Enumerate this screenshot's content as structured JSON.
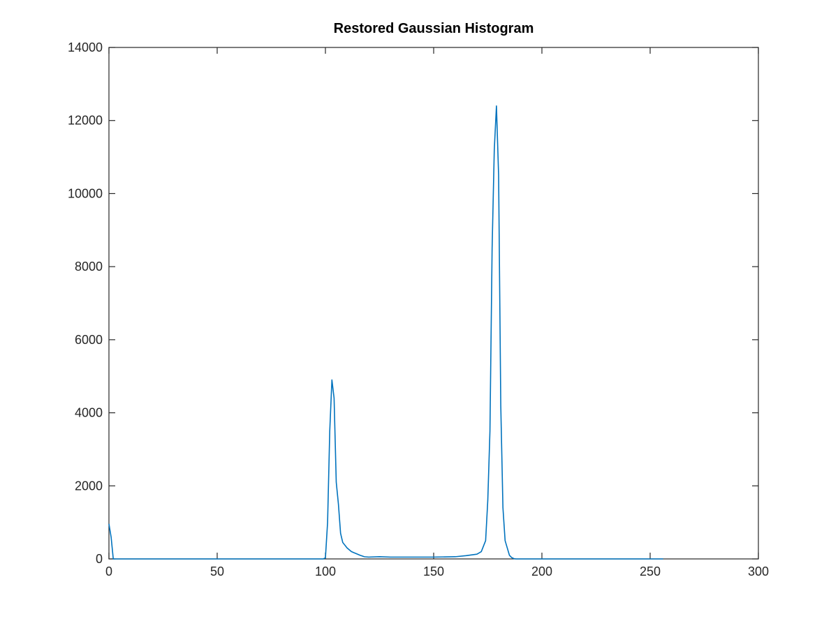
{
  "chart_data": {
    "type": "line",
    "title": "Restored Gaussian Histogram",
    "xlabel": "",
    "ylabel": "",
    "xlim": [
      0,
      300
    ],
    "ylim": [
      0,
      14000
    ],
    "xticks": [
      0,
      50,
      100,
      150,
      200,
      250,
      300
    ],
    "yticks": [
      0,
      2000,
      4000,
      6000,
      8000,
      10000,
      12000,
      14000
    ],
    "grid": false,
    "legend": "none",
    "colors": {
      "line": "#0072bd",
      "axes": "#262626",
      "background": "#ffffff"
    },
    "series": [
      {
        "x": [
          0,
          1,
          2,
          3,
          10,
          50,
          98,
          99,
          100,
          101,
          102,
          103,
          104,
          105,
          106,
          107,
          108,
          110,
          112,
          114,
          116,
          118,
          120,
          125,
          130,
          140,
          150,
          160,
          165,
          170,
          172,
          174,
          175,
          176,
          177,
          178,
          179,
          180,
          181,
          182,
          183,
          184,
          185,
          186,
          187,
          188,
          190,
          200,
          220,
          240,
          255,
          256
        ],
        "y": [
          960,
          600,
          0,
          0,
          0,
          0,
          0,
          0,
          30,
          1000,
          3500,
          4900,
          4400,
          2100,
          1500,
          700,
          450,
          300,
          200,
          150,
          100,
          60,
          50,
          60,
          50,
          50,
          50,
          60,
          90,
          130,
          200,
          500,
          1600,
          3500,
          8500,
          11200,
          12400,
          10500,
          4200,
          1400,
          500,
          300,
          100,
          40,
          10,
          0,
          0,
          0,
          0,
          0,
          0,
          0
        ]
      }
    ]
  }
}
